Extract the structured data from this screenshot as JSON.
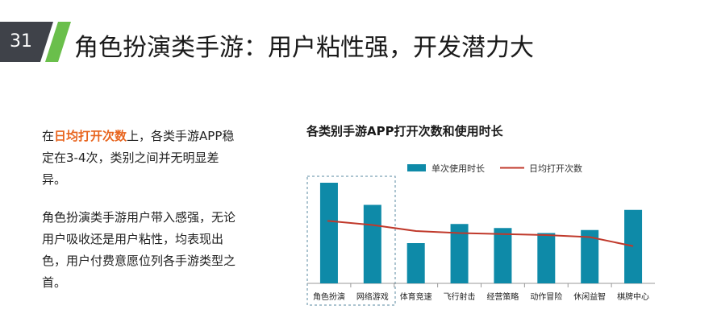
{
  "slide": {
    "number": "31",
    "title": "角色扮演类手游：用户粘性强，开发潜力大"
  },
  "left_text": {
    "p1_prefix": "在",
    "p1_highlight": "日均打开次数",
    "p1_suffix": "上，各类手游APP稳定在3-4次，类别之间并无明显差异。",
    "p2": "角色扮演类手游用户带入感强，无论用户吸收还是用户粘性，均表现出色，用户付费意愿位列各手游类型之首。"
  },
  "colors": {
    "bar": "#0e8aa8",
    "line": "#c0392b",
    "badge": "#3f4249",
    "accent_green": "#6abf4b",
    "highlight": "#e8651f"
  },
  "chart_data": {
    "type": "bar",
    "title": "各类别手游APP打开次数和使用时长",
    "categories": [
      "角色扮演",
      "网络游戏",
      "体育竞速",
      "飞行射击",
      "经营策略",
      "动作冒险",
      "休闲益智",
      "棋牌中心"
    ],
    "series": [
      {
        "name": "单次使用时长",
        "type": "bar",
        "values": [
          100,
          78,
          40,
          59,
          55,
          50,
          53,
          73
        ]
      },
      {
        "name": "日均打开次数",
        "type": "line",
        "values": [
          62,
          58,
          52,
          50,
          49,
          48,
          46,
          37
        ]
      }
    ],
    "ylim": [
      0,
      100
    ],
    "grid": false,
    "legend": "top",
    "highlight_categories": [
      "角色扮演",
      "网络游戏"
    ]
  }
}
